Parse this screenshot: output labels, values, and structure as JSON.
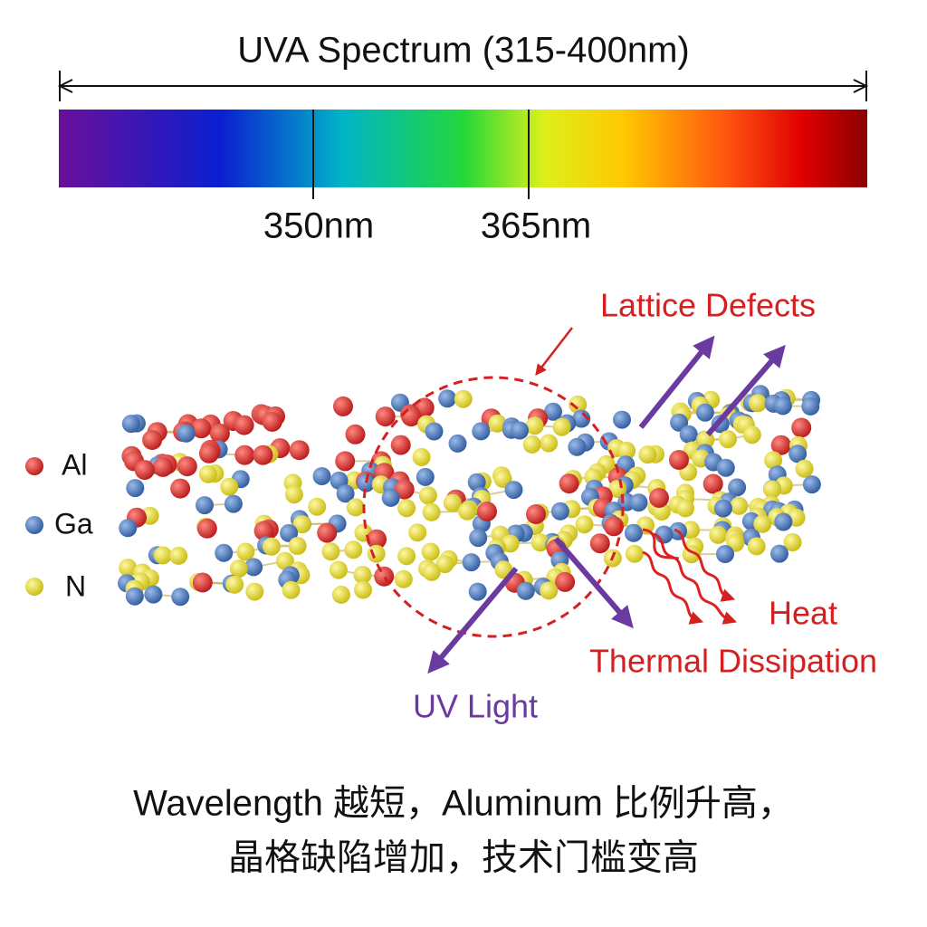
{
  "header": {
    "title": "UVA Spectrum (315-400nm)"
  },
  "spectrum": {
    "markers": [
      "350nm",
      "365nm"
    ]
  },
  "legend": [
    "Al",
    "Ga",
    "N"
  ],
  "annotations": {
    "lattice_defects": "Lattice Defects",
    "heat": "Heat",
    "thermal_dissipation": "Thermal Dissipation",
    "uv_light": "UV Light"
  },
  "caption": [
    "Wavelength 越短，Aluminum 比例升高，",
    "晶格缺陷增加，技术门槛变高"
  ]
}
